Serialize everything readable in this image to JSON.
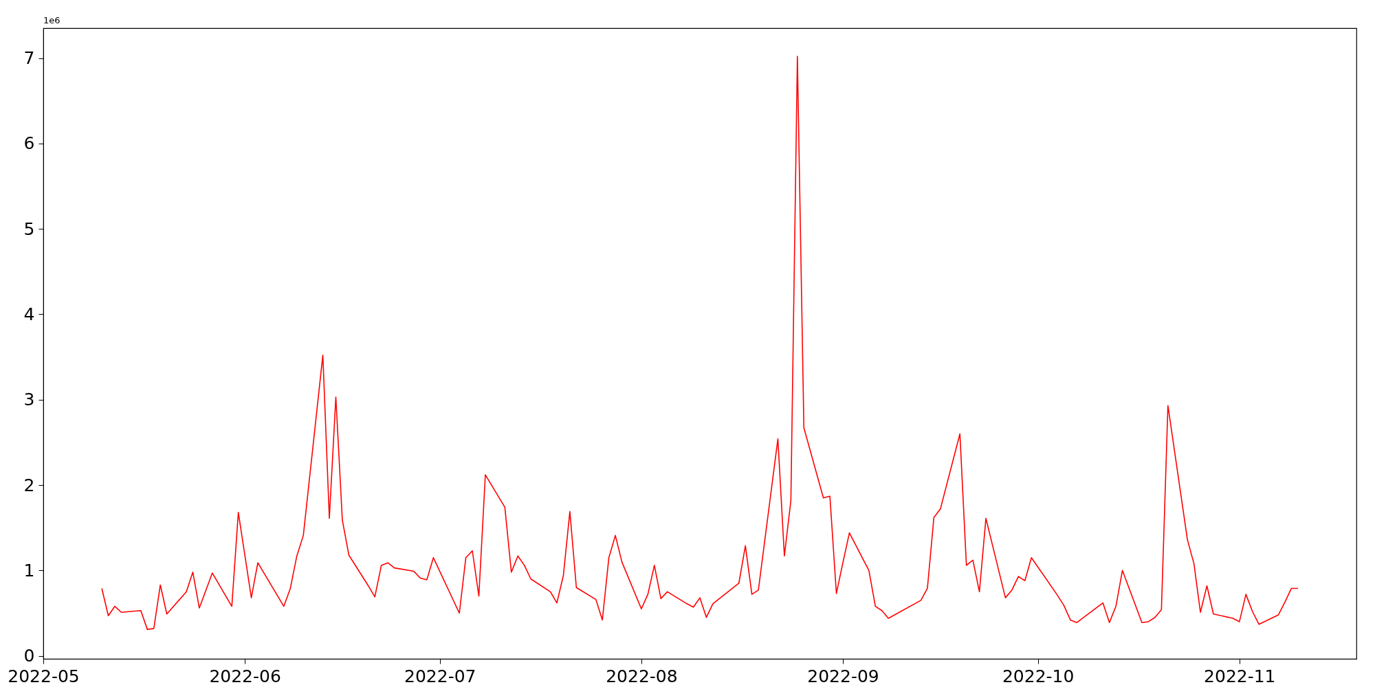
{
  "chart_data": {
    "type": "line",
    "x": [
      "2022-05-10",
      "2022-05-11",
      "2022-05-12",
      "2022-05-13",
      "2022-05-16",
      "2022-05-17",
      "2022-05-18",
      "2022-05-19",
      "2022-05-20",
      "2022-05-23",
      "2022-05-24",
      "2022-05-25",
      "2022-05-27",
      "2022-05-30",
      "2022-05-31",
      "2022-06-02",
      "2022-06-03",
      "2022-06-07",
      "2022-06-08",
      "2022-06-09",
      "2022-06-10",
      "2022-06-13",
      "2022-06-14",
      "2022-06-15",
      "2022-06-16",
      "2022-06-17",
      "2022-06-20",
      "2022-06-21",
      "2022-06-22",
      "2022-06-23",
      "2022-06-24",
      "2022-06-27",
      "2022-06-28",
      "2022-06-29",
      "2022-06-30",
      "2022-07-04",
      "2022-07-05",
      "2022-07-06",
      "2022-07-07",
      "2022-07-08",
      "2022-07-11",
      "2022-07-12",
      "2022-07-13",
      "2022-07-14",
      "2022-07-15",
      "2022-07-18",
      "2022-07-19",
      "2022-07-20",
      "2022-07-21",
      "2022-07-22",
      "2022-07-25",
      "2022-07-26",
      "2022-07-27",
      "2022-07-28",
      "2022-07-29",
      "2022-08-01",
      "2022-08-02",
      "2022-08-03",
      "2022-08-04",
      "2022-08-05",
      "2022-08-08",
      "2022-08-09",
      "2022-08-10",
      "2022-08-11",
      "2022-08-12",
      "2022-08-16",
      "2022-08-17",
      "2022-08-18",
      "2022-08-19",
      "2022-08-22",
      "2022-08-23",
      "2022-08-24",
      "2022-08-25",
      "2022-08-26",
      "2022-08-29",
      "2022-08-30",
      "2022-08-31",
      "2022-09-01",
      "2022-09-02",
      "2022-09-05",
      "2022-09-06",
      "2022-09-07",
      "2022-09-08",
      "2022-09-13",
      "2022-09-14",
      "2022-09-15",
      "2022-09-16",
      "2022-09-19",
      "2022-09-20",
      "2022-09-21",
      "2022-09-22",
      "2022-09-23",
      "2022-09-26",
      "2022-09-27",
      "2022-09-28",
      "2022-09-29",
      "2022-09-30",
      "2022-10-04",
      "2022-10-05",
      "2022-10-06",
      "2022-10-07",
      "2022-10-11",
      "2022-10-12",
      "2022-10-13",
      "2022-10-14",
      "2022-10-17",
      "2022-10-18",
      "2022-10-19",
      "2022-10-20",
      "2022-10-21",
      "2022-10-24",
      "2022-10-25",
      "2022-10-26",
      "2022-10-27",
      "2022-10-28",
      "2022-10-31",
      "2022-11-01",
      "2022-11-02",
      "2022-11-03",
      "2022-11-04",
      "2022-11-07",
      "2022-11-08",
      "2022-11-09",
      "2022-11-10"
    ],
    "series": [
      {
        "color": "#ff0000",
        "values": [
          0.79,
          0.47,
          0.58,
          0.51,
          0.53,
          0.31,
          0.32,
          0.83,
          0.49,
          0.75,
          0.98,
          0.56,
          0.97,
          0.58,
          1.68,
          0.68,
          1.09,
          0.58,
          0.79,
          1.17,
          1.41,
          3.52,
          1.61,
          3.03,
          1.59,
          1.18,
          0.82,
          0.69,
          1.06,
          1.09,
          1.03,
          0.99,
          0.91,
          0.89,
          1.15,
          0.5,
          1.15,
          1.23,
          0.7,
          2.12,
          1.74,
          0.98,
          1.17,
          1.06,
          0.9,
          0.75,
          0.62,
          0.94,
          1.69,
          0.8,
          0.66,
          0.42,
          1.15,
          1.41,
          1.1,
          0.55,
          0.72,
          1.06,
          0.67,
          0.75,
          0.61,
          0.57,
          0.68,
          0.45,
          0.61,
          0.85,
          1.29,
          0.72,
          0.77,
          2.54,
          1.17,
          1.82,
          7.02,
          2.67,
          1.85,
          1.87,
          0.73,
          1.09,
          1.44,
          1.0,
          0.58,
          0.53,
          0.44,
          0.65,
          0.79,
          1.62,
          1.72,
          2.6,
          1.06,
          1.12,
          0.75,
          1.61,
          0.68,
          0.77,
          0.93,
          0.88,
          1.15,
          0.71,
          0.59,
          0.42,
          0.39,
          0.62,
          0.39,
          0.58,
          1.0,
          0.39,
          0.4,
          0.45,
          0.54,
          2.93,
          1.36,
          1.08,
          0.51,
          0.82,
          0.49,
          0.44,
          0.4,
          0.72,
          0.52,
          0.37,
          0.48,
          0.63,
          0.79,
          0.79
        ]
      }
    ],
    "xlim": [
      "2022-05-01",
      "2022-11-19"
    ],
    "xticks": [
      "2022-05",
      "2022-06",
      "2022-07",
      "2022-08",
      "2022-09",
      "2022-10",
      "2022-11"
    ],
    "ylim": [
      -0.035,
      7.35
    ],
    "yticks": [
      0,
      1,
      2,
      3,
      4,
      5,
      6,
      7
    ],
    "annotations": [
      "1e6"
    ],
    "grid": false,
    "marker": "none",
    "line_style": "solid"
  }
}
